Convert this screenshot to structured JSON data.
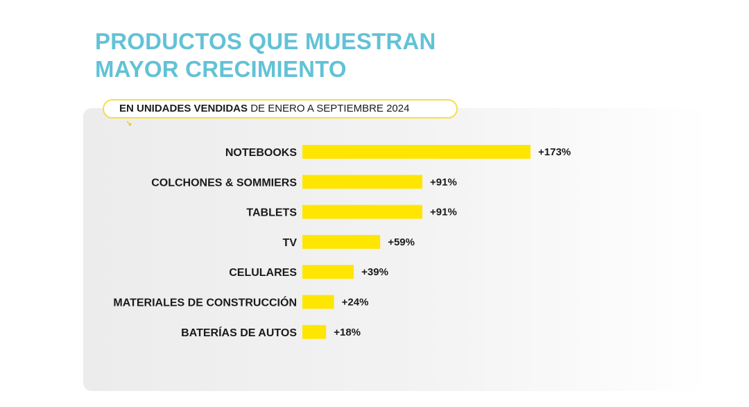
{
  "title": {
    "line1": "PRODUCTOS QUE MUESTRAN",
    "line2": "MAYOR CRECIMIENTO"
  },
  "subtitle": {
    "bold": "EN UNIDADES VENDIDAS",
    "rest": " DE ENERO A SEPTIEMBRE 2024"
  },
  "icons": {
    "arrow": "arrow-down-right-icon"
  },
  "colors": {
    "title": "#62c2d6",
    "bar": "#ffe600",
    "pill_border": "#f7dc4b",
    "panel": "#efefef",
    "text": "#1a1a1a"
  },
  "chart_data": {
    "type": "bar",
    "orientation": "horizontal",
    "title": "PRODUCTOS QUE MUESTRAN MAYOR CRECIMIENTO",
    "subtitle": "EN UNIDADES VENDIDAS DE ENERO A SEPTIEMBRE 2024",
    "categories": [
      "NOTEBOOKS",
      "COLCHONES & SOMMIERS",
      "TABLETS",
      "TV",
      "CELULARES",
      "MATERIALES DE CONSTRUCCIÓN",
      "BATERÍAS DE AUTOS"
    ],
    "values": [
      173,
      91,
      91,
      59,
      39,
      24,
      18
    ],
    "value_labels": [
      "+173%",
      "+91%",
      "+91%",
      "+59%",
      "+39%",
      "+24%",
      "+18%"
    ],
    "unit": "%",
    "xlim": [
      0,
      173
    ],
    "grid": false,
    "legend": "none"
  }
}
